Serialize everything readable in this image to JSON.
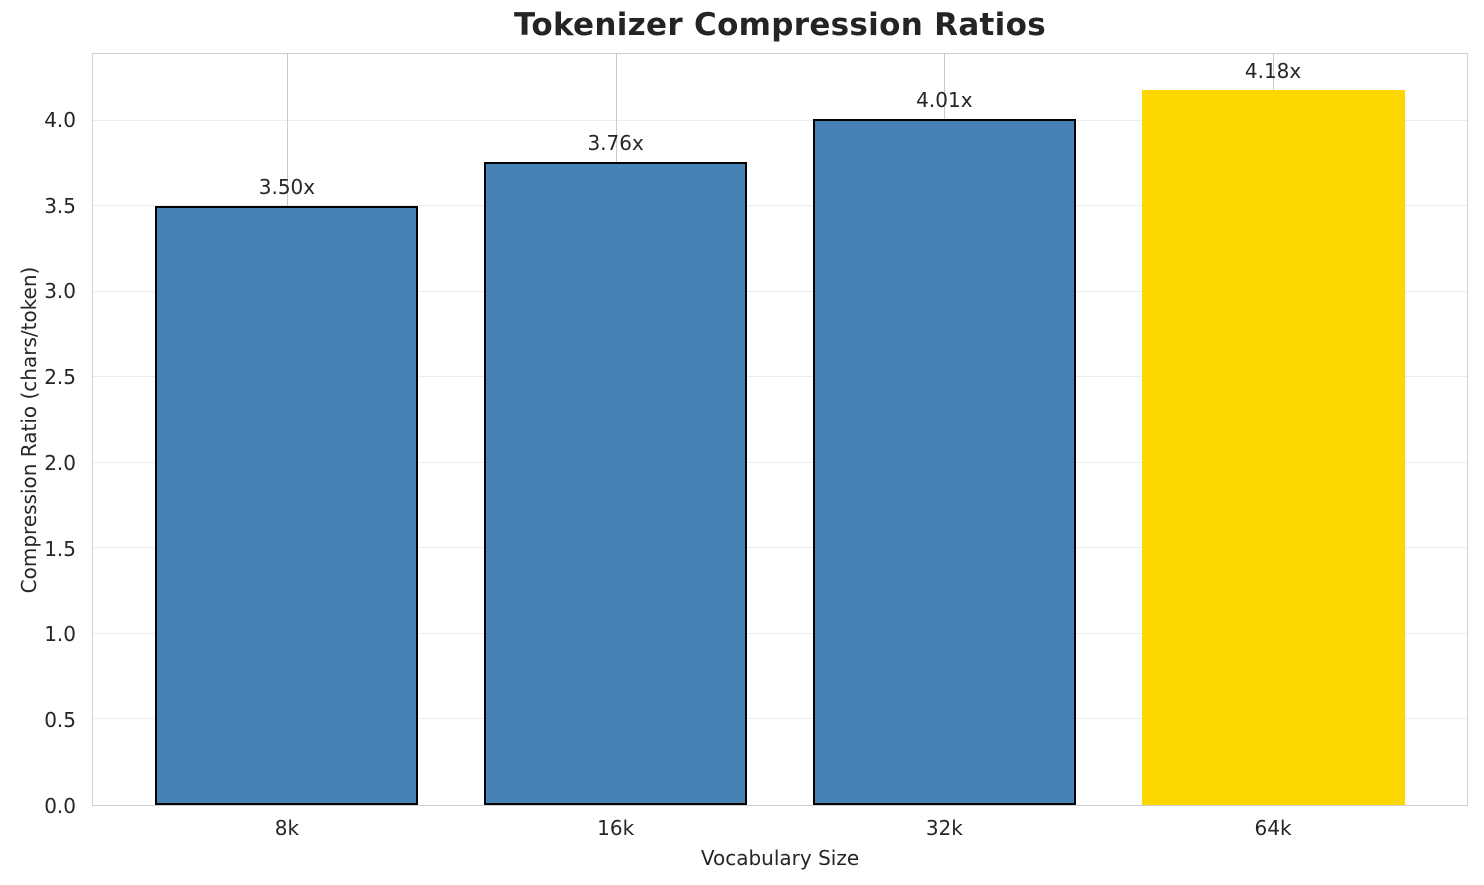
{
  "chart_data": {
    "type": "bar",
    "title": "Tokenizer Compression Ratios",
    "xlabel": "Vocabulary Size",
    "ylabel": "Compression Ratio (chars/token)",
    "categories": [
      "8k",
      "16k",
      "32k",
      "64k"
    ],
    "values": [
      3.5,
      3.76,
      4.01,
      4.18
    ],
    "bar_labels": [
      "3.50x",
      "3.76x",
      "4.01x",
      "4.18x"
    ],
    "yticks": [
      0,
      0.5,
      1,
      1.5,
      2,
      2.5,
      3,
      3.5,
      4
    ],
    "ytick_labels": [
      "0.0",
      "0.5",
      "1.0",
      "1.5",
      "2.0",
      "2.5",
      "3.0",
      "3.5",
      "4.0"
    ],
    "ylim": [
      0,
      4.39
    ],
    "grid": true,
    "legend": false,
    "bar_colors": [
      "#4682b4",
      "#4682b4",
      "#4682b4",
      "#ffd700"
    ],
    "bar_edges": [
      "#000000",
      "#000000",
      "#000000",
      "none"
    ],
    "colors": {
      "bar_default": "#4682b4",
      "bar_highlight": "#ffd700",
      "bar_edge": "#000000",
      "grid_horizontal": "#ececec",
      "grid_vertical": "#cbcbcb",
      "spine": "#cfcfcf",
      "text": "#262626"
    }
  }
}
